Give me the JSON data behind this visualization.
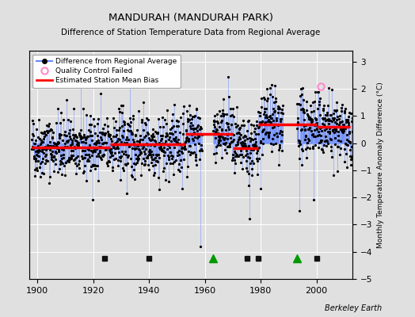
{
  "title": "MANDURAH (MANDURAH PARK)",
  "subtitle": "Difference of Station Temperature Data from Regional Average",
  "ylabel": "Monthly Temperature Anomaly Difference (°C)",
  "xlabel_credit": "Berkeley Earth",
  "xlim": [
    1897,
    2013
  ],
  "ylim": [
    -5,
    3.4
  ],
  "yticks": [
    -5,
    -4,
    -3,
    -2,
    -1,
    0,
    1,
    2,
    3
  ],
  "xticks": [
    1900,
    1920,
    1940,
    1960,
    1980,
    2000
  ],
  "bg_color": "#e0e0e0",
  "plot_bg_color": "#e0e0e0",
  "line_color": "#6688ff",
  "dot_color": "#000000",
  "bias_color": "#ff0000",
  "qc_color": "#ff88cc",
  "seed": 42,
  "start_year": 1898,
  "end_year": 2012,
  "bias_segments": [
    {
      "start": 1898,
      "end": 1926,
      "value": -0.15
    },
    {
      "start": 1926,
      "end": 1953,
      "value": -0.05
    },
    {
      "start": 1953,
      "end": 1970,
      "value": 0.35
    },
    {
      "start": 1970,
      "end": 1979,
      "value": -0.2
    },
    {
      "start": 1979,
      "end": 2000,
      "value": 0.7
    },
    {
      "start": 2000,
      "end": 2012,
      "value": 0.6
    }
  ],
  "gap_periods": [
    {
      "start": 1959,
      "end": 1963
    },
    {
      "start": 1988,
      "end": 1993
    }
  ],
  "record_gaps": [
    1963,
    1993
  ],
  "obs_changes": [],
  "empirical_breaks": [
    1924,
    1940,
    1975,
    1979,
    2000
  ],
  "qc_failed_x": 2001.5,
  "qc_failed_y": 2.1,
  "legend_box_color": "#ffffff"
}
